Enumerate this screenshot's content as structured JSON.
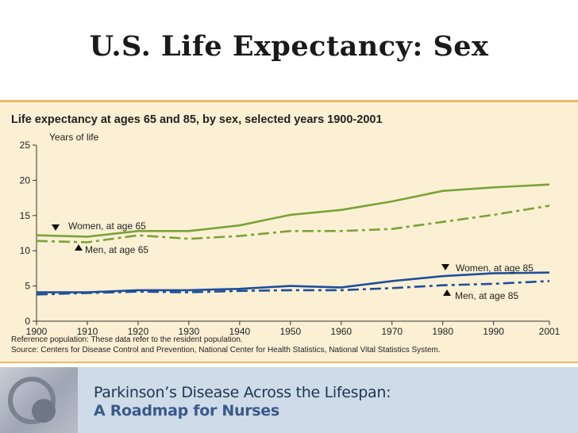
{
  "slide": {
    "title": "U.S. Life Expectancy: Sex"
  },
  "footer": {
    "line1": "Parkinson’s Disease Across the Lifespan:",
    "line2": "A Roadmap for Nurses"
  },
  "colors": {
    "green": "#7aa33a",
    "blue": "#1f4f9a",
    "panel_bg": "#fbf0d4",
    "panel_border": "#e8b96a"
  },
  "chart_data": {
    "type": "line",
    "title": "Life expectancy at ages 65 and 85, by sex, selected years 1900-2001",
    "ylabel": "Years of life",
    "ylim": [
      0,
      25
    ],
    "yticks": [
      0,
      5,
      10,
      15,
      20,
      25
    ],
    "xlim": [
      1900,
      2001
    ],
    "xticks": [
      1900,
      1910,
      1920,
      1930,
      1940,
      1950,
      1960,
      1970,
      1980,
      1990,
      2001
    ],
    "grid": false,
    "series": [
      {
        "name": "Women, at age 65",
        "color": "#7aa33a",
        "dash": "solid",
        "x": [
          1900,
          1910,
          1920,
          1930,
          1940,
          1950,
          1960,
          1970,
          1980,
          1990,
          2001
        ],
        "values": [
          12.2,
          12.0,
          12.8,
          12.8,
          13.6,
          15.1,
          15.8,
          17.0,
          18.5,
          19.0,
          19.4
        ]
      },
      {
        "name": "Men, at age 65",
        "color": "#7aa33a",
        "dash": "dashed",
        "x": [
          1900,
          1910,
          1920,
          1930,
          1940,
          1950,
          1960,
          1970,
          1980,
          1990,
          2001
        ],
        "values": [
          11.4,
          11.2,
          12.2,
          11.7,
          12.1,
          12.8,
          12.8,
          13.1,
          14.1,
          15.1,
          16.4
        ]
      },
      {
        "name": "Women, at age 85",
        "color": "#1f4f9a",
        "dash": "solid",
        "x": [
          1900,
          1910,
          1920,
          1930,
          1940,
          1950,
          1960,
          1970,
          1980,
          1990,
          2001
        ],
        "values": [
          4.1,
          4.1,
          4.4,
          4.4,
          4.6,
          5.0,
          4.8,
          5.7,
          6.4,
          6.8,
          6.9
        ]
      },
      {
        "name": "Men, at age 85",
        "color": "#1f4f9a",
        "dash": "dashed",
        "x": [
          1900,
          1910,
          1920,
          1930,
          1940,
          1950,
          1960,
          1970,
          1980,
          1990,
          2001
        ],
        "values": [
          3.8,
          4.0,
          4.2,
          4.1,
          4.3,
          4.4,
          4.4,
          4.7,
          5.1,
          5.3,
          5.7
        ]
      }
    ],
    "annotations": [
      {
        "text": "Women, at age 65",
        "marker": "down"
      },
      {
        "text": "Men, at age 65",
        "marker": "up"
      },
      {
        "text": "Women, at age 85",
        "marker": "down"
      },
      {
        "text": "Men, at age 85",
        "marker": "up"
      }
    ],
    "notes": [
      "Reference population: These data refer to the resident population.",
      "Source: Centers for Disease Control and Prevention, National Center for Health Statistics, National Vital Statistics System."
    ]
  }
}
